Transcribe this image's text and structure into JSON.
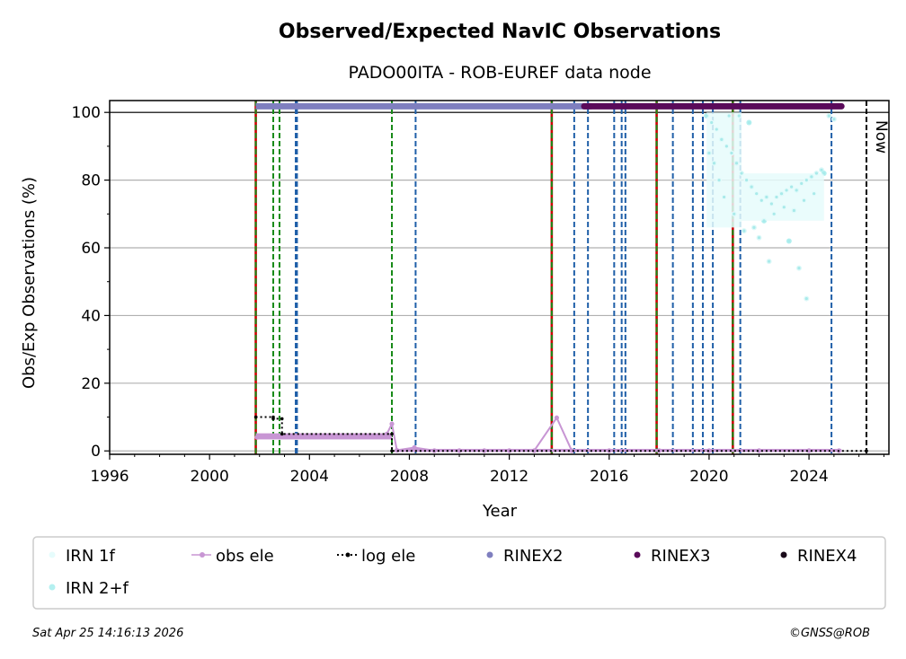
{
  "chart_data": {
    "type": "scatter",
    "title": "Observed/Expected NavIC Observations",
    "subtitle": "PADO00ITA - ROB-EUREF data node",
    "xlabel": "Year",
    "ylabel": "Obs/Exp Observations (%)",
    "xlim": [
      1996,
      2027.2
    ],
    "ylim": [
      -1,
      103.5
    ],
    "x_ticks": [
      "1996",
      "2000",
      "2004",
      "2008",
      "2012",
      "2016",
      "2020",
      "2024"
    ],
    "y_ticks": [
      "0",
      "20",
      "40",
      "60",
      "80",
      "100"
    ],
    "grid": "horizontal",
    "now_label": "Now",
    "now_x": 2026.3,
    "red_lines": [
      2001.85,
      2013.7,
      2017.9,
      2020.95
    ],
    "green_lines": [
      2001.85,
      2002.55,
      2002.8,
      2007.3,
      2013.7,
      2017.9,
      2020.95
    ],
    "blue_lines": [
      2003.45,
      2003.5,
      2008.25,
      2014.6,
      2015.15,
      2016.2,
      2016.5,
      2016.65,
      2018.55,
      2019.35,
      2019.75,
      2020.15,
      2021.25,
      2024.9
    ],
    "rinex2_segment": {
      "x0": 2001.85,
      "x1": 2015.3,
      "y": 101.8
    },
    "rinex3_segment": {
      "x0": 2015.0,
      "x1": 2025.3,
      "y": 101.8
    },
    "log_ele_steps": [
      [
        2001.85,
        10
      ],
      [
        2002.55,
        10
      ],
      [
        2002.55,
        9.5
      ],
      [
        2002.9,
        9.5
      ],
      [
        2002.9,
        5
      ],
      [
        2007.3,
        5
      ],
      [
        2007.3,
        0
      ],
      [
        2026.3,
        0
      ]
    ],
    "obs_ele_points": [
      [
        2001.9,
        4
      ],
      [
        2002.3,
        4.3
      ],
      [
        2002.8,
        4.1
      ],
      [
        2003.3,
        4.4
      ],
      [
        2003.8,
        4.2
      ],
      [
        2004.3,
        4.4
      ],
      [
        2004.8,
        4.3
      ],
      [
        2005.3,
        4.5
      ],
      [
        2005.8,
        4.3
      ],
      [
        2006.3,
        4.4
      ],
      [
        2006.8,
        4.2
      ],
      [
        2007.1,
        5
      ],
      [
        2007.3,
        8
      ],
      [
        2007.5,
        0.2
      ],
      [
        2008.2,
        1
      ],
      [
        2009,
        0.1
      ],
      [
        2010,
        0.1
      ],
      [
        2011,
        0.1
      ],
      [
        2012,
        0.1
      ],
      [
        2013,
        0.1
      ],
      [
        2013.9,
        9.8
      ],
      [
        2014.5,
        0.1
      ],
      [
        2016,
        0.1
      ],
      [
        2018,
        0.1
      ],
      [
        2020,
        0.1
      ],
      [
        2022,
        0.1
      ],
      [
        2024,
        0.1
      ],
      [
        2025.2,
        0.1
      ]
    ],
    "series": [
      {
        "name": "IRN 1f",
        "color": "#e6fcfc"
      },
      {
        "name": "obs ele",
        "color": "#c896d4"
      },
      {
        "name": "log ele",
        "color": "#000000"
      },
      {
        "name": "RINEX2",
        "color": "#7f7fbf"
      },
      {
        "name": "RINEX3",
        "color": "#5a0a5a"
      },
      {
        "name": "RINEX4",
        "color": "#1a0a1a"
      },
      {
        "name": "IRN 2+f",
        "color": "#b4f0f0"
      }
    ],
    "irn_cluster": [
      [
        2019.9,
        99
      ],
      [
        2020.1,
        97
      ],
      [
        2020.3,
        95
      ],
      [
        2020.5,
        92
      ],
      [
        2020.7,
        90
      ],
      [
        2020.9,
        88
      ],
      [
        2021.1,
        85
      ],
      [
        2021.3,
        82
      ],
      [
        2021.5,
        80
      ],
      [
        2021.7,
        78
      ],
      [
        2021.9,
        76
      ],
      [
        2022.1,
        74
      ],
      [
        2022.3,
        75
      ],
      [
        2022.5,
        73
      ],
      [
        2022.7,
        75
      ],
      [
        2022.9,
        76
      ],
      [
        2023.1,
        77
      ],
      [
        2023.3,
        78
      ],
      [
        2023.5,
        77
      ],
      [
        2023.7,
        79
      ],
      [
        2023.9,
        80
      ],
      [
        2024.1,
        81
      ],
      [
        2024.3,
        82
      ],
      [
        2024.5,
        83
      ],
      [
        2020.2,
        85
      ],
      [
        2020.4,
        80
      ],
      [
        2020.6,
        75
      ],
      [
        2021.0,
        70
      ],
      [
        2021.4,
        65
      ],
      [
        2021.8,
        66
      ],
      [
        2022.2,
        68
      ],
      [
        2022.6,
        70
      ],
      [
        2023.0,
        72
      ],
      [
        2023.4,
        71
      ],
      [
        2023.8,
        74
      ],
      [
        2024.2,
        76
      ],
      [
        2020.0,
        88
      ],
      [
        2020.8,
        99
      ],
      [
        2021.2,
        99
      ],
      [
        2021.6,
        97
      ],
      [
        2022.0,
        63
      ],
      [
        2022.4,
        56
      ],
      [
        2023.2,
        62
      ],
      [
        2023.6,
        54
      ],
      [
        2023.9,
        45
      ],
      [
        2024.6,
        82
      ],
      [
        2024.8,
        99
      ],
      [
        2025.0,
        98
      ]
    ]
  },
  "footer": {
    "timestamp": "Sat Apr 25 14:16:13 2026",
    "copyright": "©GNSS@ROB"
  }
}
